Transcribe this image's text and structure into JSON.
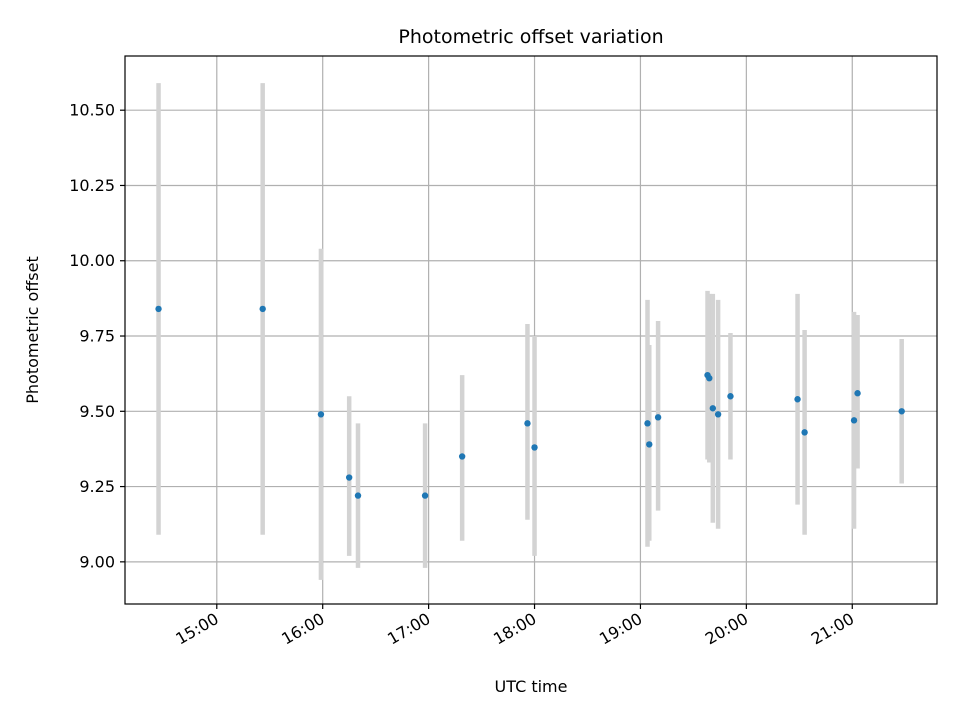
{
  "chart_data": {
    "type": "scatter",
    "title": "Photometric offset variation",
    "xlabel": "UTC time",
    "ylabel": "Photometric offset",
    "ylim": [
      8.86,
      10.68
    ],
    "xlim": [
      "14:08",
      "21:48"
    ],
    "grid": true,
    "colors": {
      "marker": "#1f77b4",
      "errorbar": "#d3d3d3"
    },
    "x_ticks": [
      "15:00",
      "16:00",
      "17:00",
      "18:00",
      "19:00",
      "20:00",
      "21:00"
    ],
    "y_ticks": [
      "9.00",
      "9.25",
      "9.50",
      "9.75",
      "10.00",
      "10.25",
      "10.50"
    ],
    "points": [
      {
        "x": "14:27",
        "y": 9.84,
        "ylow": 9.09,
        "yhigh": 10.59
      },
      {
        "x": "15:26",
        "y": 9.84,
        "ylow": 9.09,
        "yhigh": 10.59
      },
      {
        "x": "15:59",
        "y": 9.49,
        "ylow": 8.94,
        "yhigh": 10.04
      },
      {
        "x": "16:15",
        "y": 9.28,
        "ylow": 9.02,
        "yhigh": 9.55
      },
      {
        "x": "16:20",
        "y": 9.22,
        "ylow": 8.98,
        "yhigh": 9.46
      },
      {
        "x": "16:58",
        "y": 9.22,
        "ylow": 8.98,
        "yhigh": 9.46
      },
      {
        "x": "17:19",
        "y": 9.35,
        "ylow": 9.07,
        "yhigh": 9.62
      },
      {
        "x": "17:56",
        "y": 9.46,
        "ylow": 9.14,
        "yhigh": 9.79
      },
      {
        "x": "18:00",
        "y": 9.38,
        "ylow": 9.02,
        "yhigh": 9.75
      },
      {
        "x": "19:04",
        "y": 9.46,
        "ylow": 9.05,
        "yhigh": 9.87
      },
      {
        "x": "19:05",
        "y": 9.39,
        "ylow": 9.07,
        "yhigh": 9.72
      },
      {
        "x": "19:10",
        "y": 9.48,
        "ylow": 9.17,
        "yhigh": 9.8
      },
      {
        "x": "19:38",
        "y": 9.62,
        "ylow": 9.34,
        "yhigh": 9.9
      },
      {
        "x": "19:39",
        "y": 9.61,
        "ylow": 9.33,
        "yhigh": 9.89
      },
      {
        "x": "19:41",
        "y": 9.51,
        "ylow": 9.13,
        "yhigh": 9.89
      },
      {
        "x": "19:44",
        "y": 9.49,
        "ylow": 9.11,
        "yhigh": 9.87
      },
      {
        "x": "19:51",
        "y": 9.55,
        "ylow": 9.34,
        "yhigh": 9.76
      },
      {
        "x": "20:29",
        "y": 9.54,
        "ylow": 9.19,
        "yhigh": 9.89
      },
      {
        "x": "20:33",
        "y": 9.43,
        "ylow": 9.09,
        "yhigh": 9.77
      },
      {
        "x": "21:01",
        "y": 9.47,
        "ylow": 9.11,
        "yhigh": 9.83
      },
      {
        "x": "21:03",
        "y": 9.56,
        "ylow": 9.31,
        "yhigh": 9.82
      },
      {
        "x": "21:28",
        "y": 9.5,
        "ylow": 9.26,
        "yhigh": 9.74
      }
    ]
  }
}
